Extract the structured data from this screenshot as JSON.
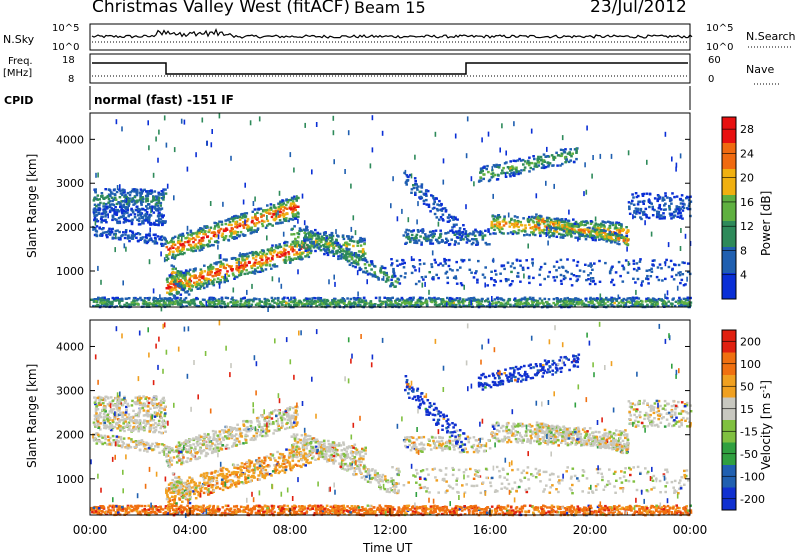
{
  "header": {
    "title": "Christmas Valley West (fitACF)",
    "beam": "Beam 15",
    "date": "23/Jul/2012"
  },
  "panels": {
    "nsky": {
      "label": "N.Sky",
      "right_label": "N.Search",
      "left_ticks": [
        "10^5",
        "10^0"
      ],
      "right_ticks": [
        "10^5",
        "10^0"
      ]
    },
    "freq": {
      "label_line1": "Freq.",
      "label_line2": "[MHz]",
      "right_label": "Nave",
      "left_ticks": [
        "18",
        "8"
      ],
      "right_ticks": [
        "60",
        "0"
      ]
    },
    "cpid": {
      "label": "CPID",
      "text": "normal (fast) -151 IF"
    }
  },
  "chart_data": [
    {
      "type": "heatmap",
      "name": "power",
      "ylabel": "Slant Range [km]",
      "xlabel": "",
      "xlim": [
        "00:00",
        "24:00"
      ],
      "ylim": [
        180,
        4600
      ],
      "yticks": [
        1000,
        2000,
        3000,
        4000
      ],
      "colorbar": {
        "label": "Power [dB]",
        "ticks": [
          4,
          8,
          12,
          16,
          20,
          24,
          28
        ],
        "range": [
          0,
          30
        ],
        "colors": [
          "#0a2fd6",
          "#1f5fb0",
          "#2e8a5a",
          "#5fb040",
          "#f0b010",
          "#f06a10",
          "#e81010"
        ]
      }
    },
    {
      "type": "heatmap",
      "name": "velocity",
      "ylabel": "Slant Range [km]",
      "xlabel": "Time UT",
      "xlim": [
        "00:00",
        "24:00"
      ],
      "ylim": [
        180,
        4600
      ],
      "xticks": [
        "00:00",
        "04:00",
        "08:00",
        "12:00",
        "16:00",
        "20:00",
        "00:00"
      ],
      "yticks": [
        1000,
        2000,
        3000,
        4000
      ],
      "colorbar": {
        "label": "Velocity [m s^-1]",
        "ticks": [
          200,
          100,
          50,
          15,
          -15,
          -50,
          -100,
          -200
        ],
        "colors": [
          "#1030d0",
          "#2060b0",
          "#30a040",
          "#80c040",
          "#c8c8c0",
          "#f0a020",
          "#f07010",
          "#e02010"
        ]
      }
    }
  ],
  "axis": {
    "x_title": "Time UT",
    "y_title": "Slant Range [km]",
    "power_cb_label": "Power [dB]",
    "velocity_cb_label": "Velocity [m s",
    "velocity_cb_sup": "-1",
    "velocity_cb_end": "]"
  }
}
